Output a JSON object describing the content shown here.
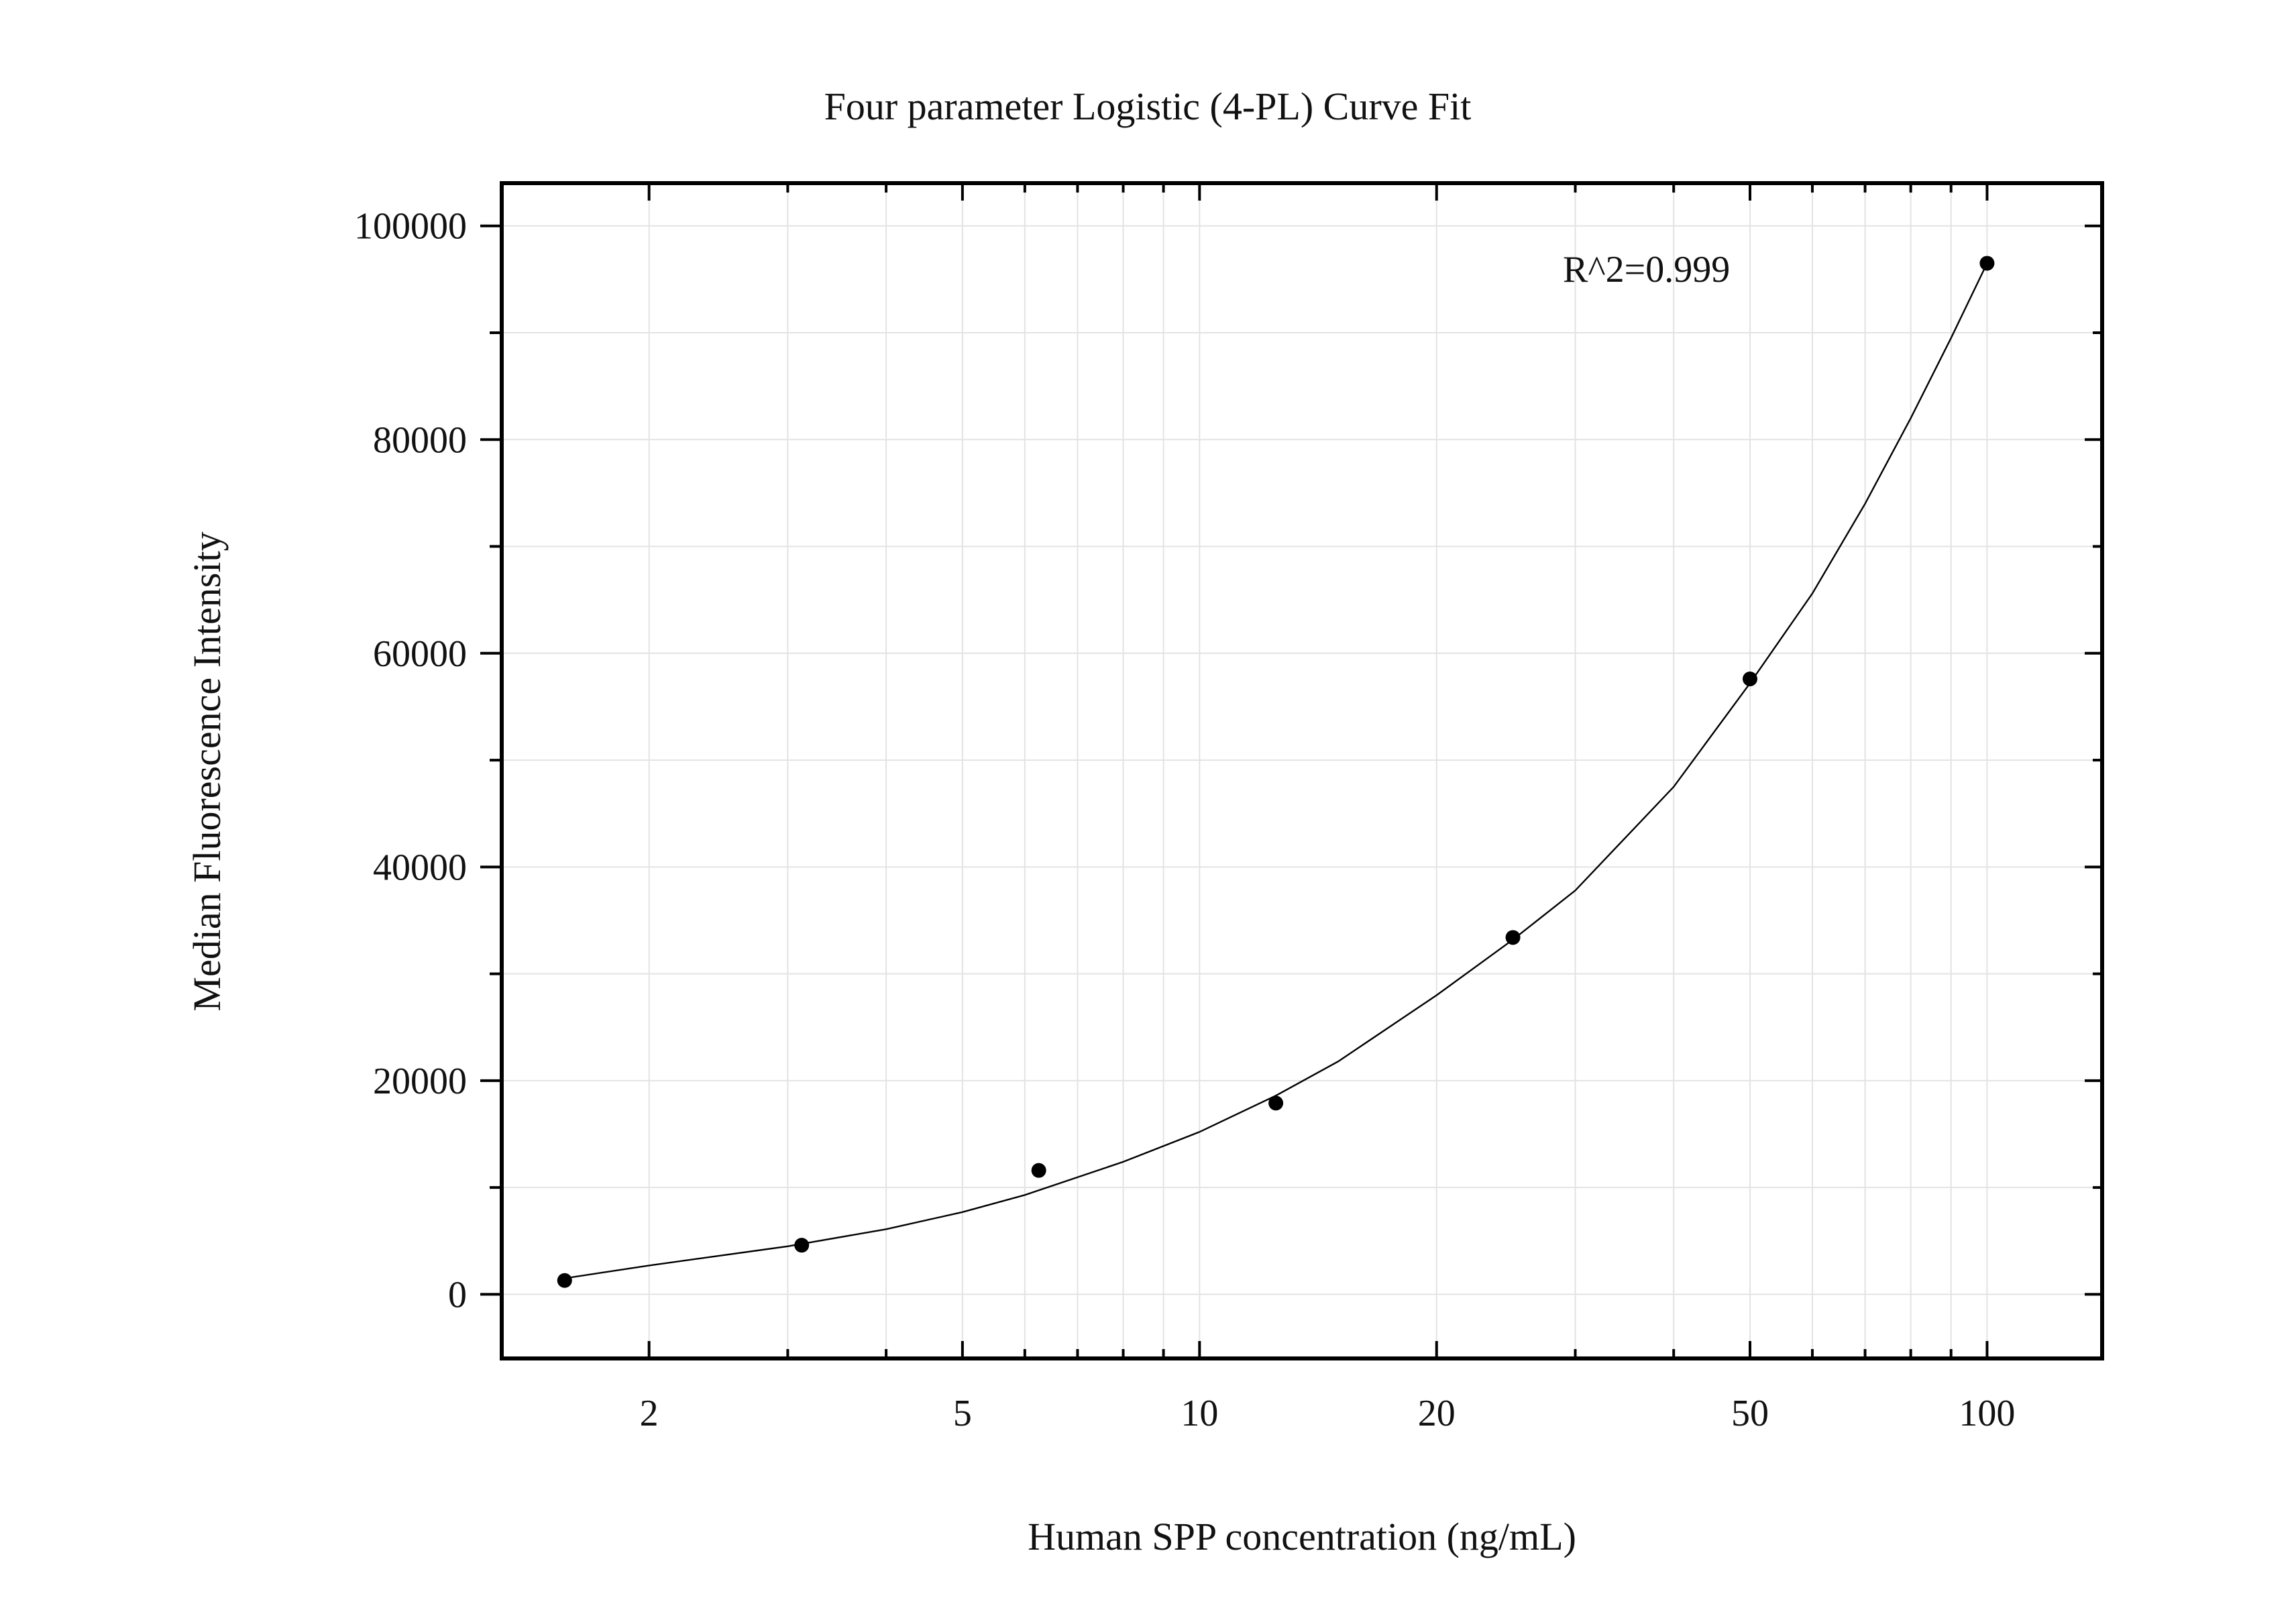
{
  "chart_data": {
    "type": "scatter",
    "title": "Four parameter Logistic (4-PL) Curve Fit",
    "xlabel": "Human SPP concentration (ng/mL)",
    "ylabel": "Median Fluorescence Intensity",
    "x_scale": "log",
    "xlim": [
      1.3,
      140
    ],
    "ylim": [
      -6000,
      104000
    ],
    "x_ticks": [
      2,
      5,
      10,
      20,
      50,
      100
    ],
    "x_tick_labels": [
      "2",
      "5",
      "10",
      "20",
      "50",
      "100"
    ],
    "y_ticks": [
      0,
      20000,
      40000,
      60000,
      80000,
      100000
    ],
    "y_tick_labels": [
      "0",
      "20000",
      "40000",
      "60000",
      "80000",
      "100000"
    ],
    "grid": true,
    "annotation": "R^2=0.999",
    "points": {
      "x": [
        1.5625,
        3.125,
        6.25,
        12.5,
        25,
        50,
        100
      ],
      "y": [
        1300,
        4600,
        11600,
        17900,
        33400,
        57600,
        96500
      ]
    },
    "fit_curve": {
      "x": [
        1.5625,
        2,
        3,
        4,
        5,
        6,
        8,
        10,
        12.5,
        15,
        20,
        25,
        30,
        40,
        50,
        60,
        70,
        80,
        90,
        100
      ],
      "y": [
        1500,
        2700,
        4500,
        6100,
        7700,
        9300,
        12400,
        15200,
        18600,
        21800,
        28000,
        33200,
        37800,
        47500,
        57200,
        65600,
        74000,
        82000,
        89500,
        96500
      ]
    },
    "colors": {
      "points": "#000000",
      "curve": "#000000",
      "grid": "#e3e3e3"
    }
  }
}
